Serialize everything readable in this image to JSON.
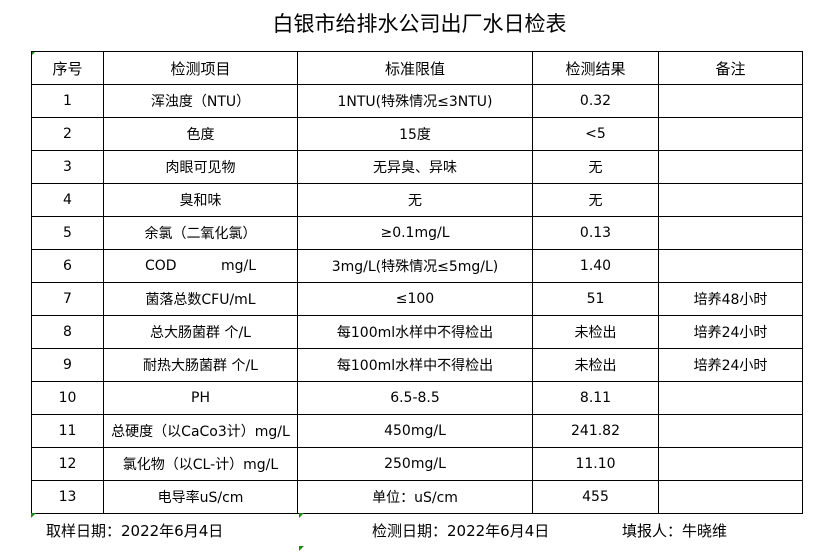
{
  "title": "白银市给排水公司出厂水日检表",
  "headers": [
    "序号",
    "检测项目",
    "标准限值",
    "检测结果",
    "备注"
  ],
  "rows": [
    [
      "1",
      "浑浊度（NTU）",
      "1NTU(特殊情况≤3NTU)",
      "0.32",
      ""
    ],
    [
      "2",
      "色度",
      "15度",
      "<5",
      ""
    ],
    [
      "3",
      "肉眼可见物",
      "无异臭、异味",
      "无",
      ""
    ],
    [
      "4",
      "臭和味",
      "无",
      "无",
      ""
    ],
    [
      "5",
      "余氯（二氧化氯）",
      "≥0.1mg/L",
      "0.13",
      ""
    ],
    [
      "6",
      "COD          mg/L",
      "3mg/L(特殊情况≤5mg/L)",
      "1.40",
      ""
    ],
    [
      "7",
      "菌落总数CFU/mL",
      "≤100",
      "51",
      "培养48小时"
    ],
    [
      "8",
      "总大肠菌群 个/L",
      "每100ml水样中不得检出",
      "未检出",
      "培养24小时"
    ],
    [
      "9",
      "耐热大肠菌群 个/L",
      "每100ml水样中不得检出",
      "未检出",
      "培养24小时"
    ],
    [
      "10",
      "PH",
      "6.5-8.5",
      "8.11",
      ""
    ],
    [
      "11",
      "总硬度（以CaCo3计）mg/L",
      "450mg/L",
      "241.82",
      ""
    ],
    [
      "12",
      "氯化物（以CL-计）mg/L",
      "250mg/L",
      "11.10",
      ""
    ],
    [
      "13",
      "电导率uS/cm",
      "单位：uS/cm",
      "455",
      ""
    ]
  ],
  "footer": {
    "sample_date": "取样日期：2022年6月4日",
    "test_date": "检测日期：2022年6月4日",
    "reporter": "填报人：牛晓维"
  }
}
